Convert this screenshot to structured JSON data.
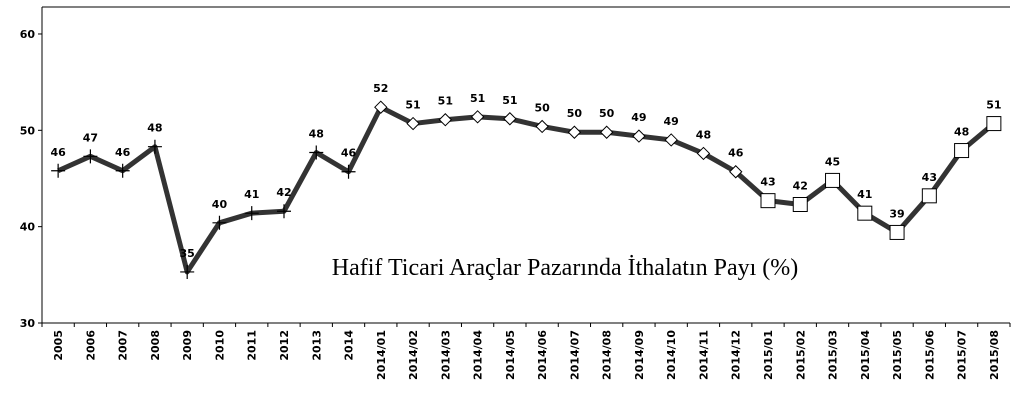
{
  "chart_data": {
    "type": "line",
    "annotation": "Hafif Ticari Araçlar Pazarında İthalatın Payı (%)",
    "categories": [
      "2005",
      "2006",
      "2007",
      "2008",
      "2009",
      "2010",
      "2011",
      "2012",
      "2013",
      "2014",
      "2014/01",
      "2014/02",
      "2014/03",
      "2014/04",
      "2014/05",
      "2014/06",
      "2014/07",
      "2014/08",
      "2014/09",
      "2014/10",
      "2014/11",
      "2014/12",
      "2015/01",
      "2015/02",
      "2015/03",
      "2015/04",
      "2015/05",
      "2015/06",
      "2015/07",
      "2015/08"
    ],
    "series": [
      {
        "color": "#333333",
        "values": [
          45.8,
          47.3,
          45.8,
          48.3,
          35.3,
          40.4,
          41.4,
          41.6,
          47.7,
          45.7,
          52.4,
          50.7,
          51.1,
          51.4,
          51.2,
          50.4,
          49.8,
          49.8,
          49.4,
          49.0,
          47.6,
          45.7,
          42.7,
          42.3,
          44.8,
          41.4,
          39.4,
          43.2,
          47.9,
          50.7
        ],
        "value_labels": [
          "46",
          "47",
          "46",
          "48",
          "35",
          "40",
          "41",
          "42",
          "48",
          "46",
          "52",
          "51",
          "51",
          "51",
          "51",
          "50",
          "50",
          "50",
          "49",
          "49",
          "48",
          "46",
          "43",
          "42",
          "45",
          "41",
          "39",
          "43",
          "48",
          "51"
        ],
        "markers": [
          "plus",
          "plus",
          "plus",
          "plus",
          "plus",
          "plus",
          "plus",
          "plus",
          "plus",
          "plus",
          "diamond",
          "diamond",
          "diamond",
          "diamond",
          "diamond",
          "diamond",
          "diamond",
          "diamond",
          "diamond",
          "diamond",
          "diamond",
          "diamond",
          "square",
          "square",
          "square",
          "square",
          "square",
          "square",
          "square",
          "square"
        ]
      }
    ],
    "ylim": [
      30,
      62.8
    ],
    "yticks": [
      30,
      40,
      50,
      60
    ]
  }
}
